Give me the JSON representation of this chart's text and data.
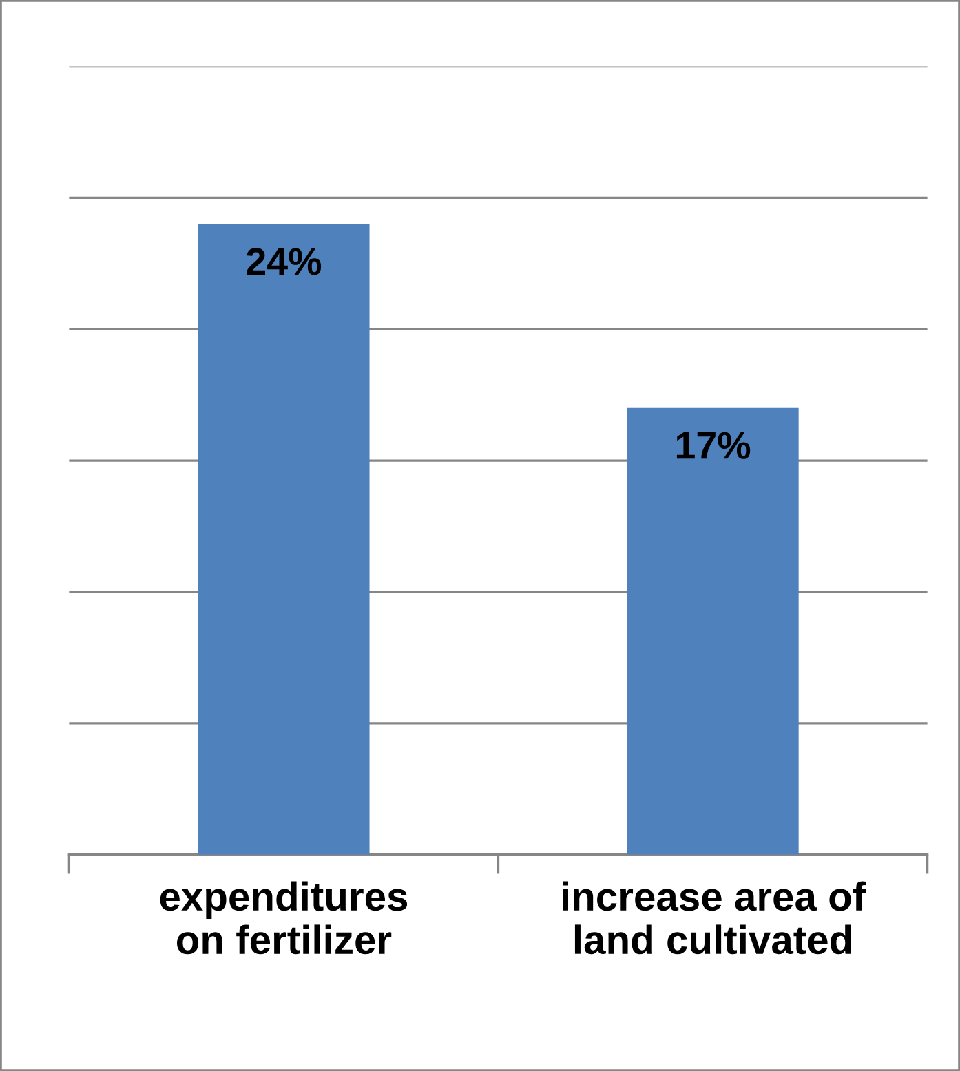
{
  "chart_data": {
    "type": "bar",
    "categories": [
      "expenditures\non fertilizer",
      "increase area of\nland cultivated"
    ],
    "values": [
      24,
      17
    ],
    "value_labels": [
      "24%",
      "17%"
    ],
    "color": "#4f81bd",
    "ylim": [
      0,
      30
    ],
    "yticks": [
      {
        "value": 0,
        "label": null
      },
      {
        "value": 5,
        "label": null
      },
      {
        "value": 10,
        "label": null
      },
      {
        "value": 15,
        "label": null
      },
      {
        "value": 20,
        "label": null
      },
      {
        "value": 25,
        "label": null
      },
      {
        "value": 30,
        "label": null
      }
    ],
    "tick_labels": "x",
    "grid": "y",
    "legend": false
  }
}
